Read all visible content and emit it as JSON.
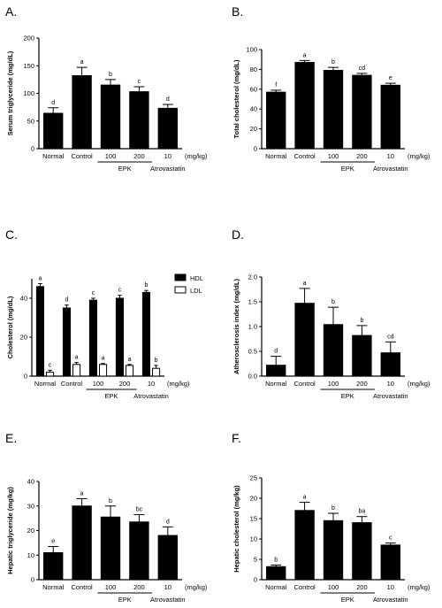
{
  "chart_data": [
    {
      "panel": "A.",
      "type": "bar",
      "ylabel": "Serum triglyceride (mg/dL)",
      "ylim": [
        0,
        200
      ],
      "yticks": [
        0,
        50,
        100,
        150,
        200
      ],
      "categories": [
        "Normal",
        "Control",
        "100",
        "200",
        "10"
      ],
      "values": [
        64,
        132,
        115,
        103,
        73
      ],
      "errors": [
        10,
        15,
        10,
        9,
        7
      ],
      "letters": [
        "d",
        "a",
        "b",
        "c",
        "d"
      ],
      "unit": "(mg/kg)",
      "group_labels": [
        "EPK",
        "Atrovastatin"
      ]
    },
    {
      "panel": "B.",
      "type": "bar",
      "ylabel": "Total cholesterol (mg/dL)",
      "ylim": [
        0,
        100
      ],
      "yticks": [
        0,
        20,
        40,
        60,
        80,
        100
      ],
      "categories": [
        "Normal",
        "Control",
        "100",
        "200",
        "10"
      ],
      "values": [
        57,
        87,
        79,
        74,
        64
      ],
      "errors": [
        2,
        2,
        3,
        2,
        2
      ],
      "letters": [
        "f",
        "a",
        "b",
        "cd",
        "e"
      ],
      "unit": "(mg/kg)",
      "group_labels": [
        "EPK",
        "Atrovastatin"
      ]
    },
    {
      "panel": "C.",
      "type": "bar",
      "ylabel": "Cholesterol (mg/dL)",
      "ylim": [
        0,
        50
      ],
      "yticks": [
        0,
        20,
        40
      ],
      "categories": [
        "Normal",
        "Control",
        "100",
        "200",
        "10"
      ],
      "series": [
        {
          "name": "HDL",
          "values": [
            46,
            35,
            39,
            40,
            43
          ],
          "errors": [
            1.5,
            1.5,
            1,
            1.5,
            1
          ],
          "letters": [
            "a",
            "d",
            "c",
            "c",
            "b"
          ]
        },
        {
          "name": "LDL",
          "values": [
            2,
            6,
            6,
            5.5,
            4
          ],
          "errors": [
            1,
            1,
            0.5,
            0.5,
            1.5
          ],
          "letters": [
            "c",
            "a",
            "a",
            "a",
            "b"
          ]
        }
      ],
      "legend": "top-right",
      "unit": "(mg/kg)",
      "group_labels": [
        "EPK",
        "Atrovastatin"
      ]
    },
    {
      "panel": "D.",
      "type": "bar",
      "ylabel": "Atherosclerosis index (mg/dL)",
      "ylim": [
        0,
        2.0
      ],
      "yticks": [
        "0.0",
        "0.5",
        "1.0",
        "1.5",
        "2.0"
      ],
      "categories": [
        "Normal",
        "Control",
        "100",
        "200",
        "10"
      ],
      "values": [
        0.22,
        1.47,
        1.04,
        0.82,
        0.47
      ],
      "errors": [
        0.18,
        0.3,
        0.35,
        0.2,
        0.22
      ],
      "letters": [
        "d",
        "a",
        "b",
        "b",
        "cd"
      ],
      "unit": "(mg/kg)",
      "group_labels": [
        "EPK",
        "Atrovastatin"
      ]
    },
    {
      "panel": "E.",
      "type": "bar",
      "ylabel": "Hepatic triglyceride (mg/kg)",
      "ylim": [
        0,
        40
      ],
      "yticks": [
        0,
        10,
        20,
        30,
        40
      ],
      "categories": [
        "Normal",
        "Control",
        "100",
        "200",
        "10"
      ],
      "values": [
        11,
        30,
        25.5,
        23.5,
        18
      ],
      "errors": [
        2.5,
        3,
        4.5,
        3,
        3.5
      ],
      "letters": [
        "e",
        "a",
        "b",
        "bc",
        "d"
      ],
      "unit": "(mg/kg)",
      "group_labels": [
        "EPK",
        "Atrovastatin"
      ]
    },
    {
      "panel": "F.",
      "type": "bar",
      "ylabel": "Hepatic cholesterol (mg/kg)",
      "ylim": [
        0,
        25
      ],
      "yticks": [
        0,
        5,
        10,
        15,
        20,
        25
      ],
      "categories": [
        "Normal",
        "Control",
        "100",
        "200",
        "10"
      ],
      "values": [
        3.2,
        17,
        14.5,
        14,
        8.5
      ],
      "errors": [
        0.4,
        2,
        1.8,
        1.5,
        0.5
      ],
      "letters": [
        "b",
        "a",
        "b",
        "ba",
        "c"
      ],
      "unit": "(mg/kg)",
      "group_labels": [
        "EPK",
        "Atrovastatin"
      ]
    }
  ]
}
